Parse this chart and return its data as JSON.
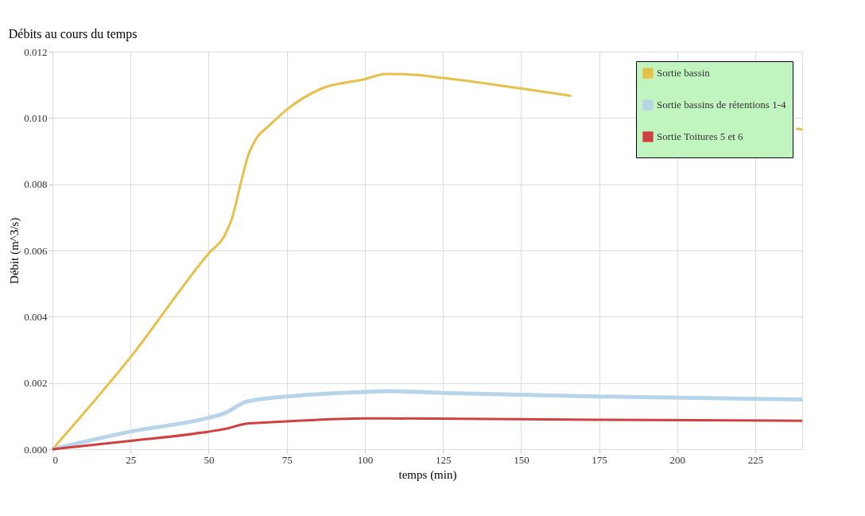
{
  "chart_data": {
    "type": "line",
    "title": "Débits au cours du temps",
    "xlabel": "temps (min)",
    "ylabel": "Débit (m^3/s)",
    "xlim": [
      0,
      240
    ],
    "xticks": [
      0,
      25,
      50,
      75,
      100,
      125,
      150,
      175,
      200,
      225
    ],
    "ylim": [
      0,
      0.012
    ],
    "yticks": [
      {
        "value": 0,
        "label": "0.000"
      },
      {
        "value": 0.002,
        "label": "0.002"
      },
      {
        "value": 0.004,
        "label": "0.004"
      },
      {
        "value": 0.006,
        "label": "0.006"
      },
      {
        "value": 0.008,
        "label": "0.008"
      },
      {
        "value": 0.01,
        "label": "0.010"
      },
      {
        "value": 0.012,
        "label": "0.012"
      }
    ],
    "grid": true,
    "legend": "top right",
    "marker": "none",
    "line_style": "solid",
    "series": [
      {
        "name": "Sortie bassin",
        "color": "#e6c04a",
        "x": [
          0,
          25,
          50,
          55.2,
          57.7,
          60.2,
          62.7,
          65.2,
          69.4,
          75,
          86.2,
          99.5,
          107.1,
          112.7,
          125,
          150,
          166,
          200,
          238,
          240
        ],
        "values": [
          0,
          0.00278,
          0.00591,
          0.00647,
          0.00704,
          0.008,
          0.00888,
          0.00937,
          0.00977,
          0.01025,
          0.01089,
          0.01116,
          0.01133,
          0.01132,
          0.01121,
          0.01089,
          0.01067,
          null,
          0.00968,
          0.00965
        ]
      },
      {
        "name": "Sortie bassins de rétentions 1-4",
        "color": "#b8d4ea",
        "x": [
          0,
          25,
          50,
          55.2,
          61.9,
          65.2,
          75,
          86.2,
          100,
          107.1,
          125,
          175,
          240
        ],
        "values": [
          0,
          0.00053,
          0.00095,
          0.00109,
          0.00143,
          0.00149,
          0.00159,
          0.00167,
          0.00173,
          0.00175,
          0.0017,
          0.00159,
          0.0015
        ]
      },
      {
        "name": "Sortie Toitures 5 et 6",
        "color": "#d04040",
        "x": [
          0,
          25,
          50,
          55.2,
          61.9,
          65.2,
          75,
          100,
          107.1,
          175,
          240
        ],
        "values": [
          0,
          0.00025,
          0.00053,
          0.00061,
          0.00077,
          0.00079,
          0.00084,
          0.00093,
          0.00093,
          0.00089,
          0.00086
        ]
      }
    ]
  }
}
